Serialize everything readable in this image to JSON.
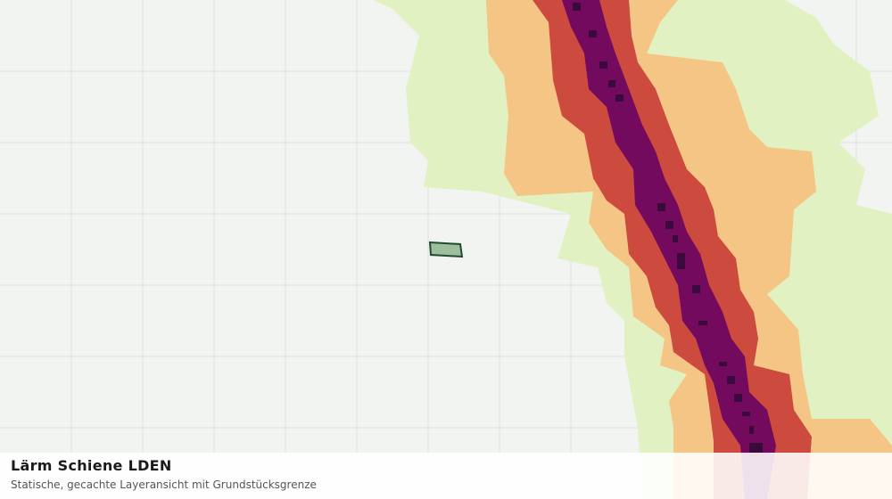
{
  "header": {
    "title": "Lärm Schiene LDEN",
    "subtitle": "Statische, gecachte Layeransicht mit Grundstücksgrenze"
  }
}
